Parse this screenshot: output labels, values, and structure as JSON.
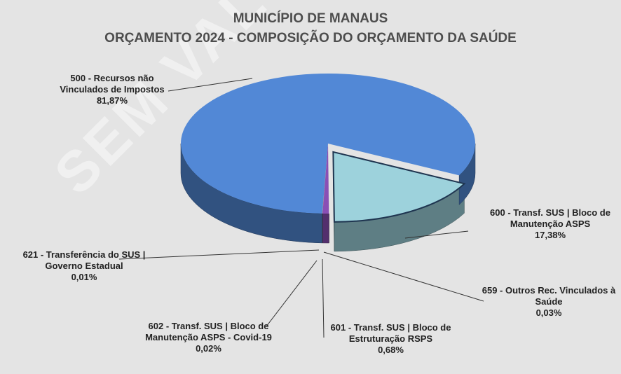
{
  "chart_data": {
    "type": "pie3d",
    "title": "MUNICÍPIO DE MANAUS",
    "subtitle": "ORÇAMENTO 2024  -  COMPOSIÇÃO DO ORÇAMENTO DA SAÚDE",
    "watermark": "SEM VALOR",
    "categories": [
      "600 - Transf. SUS | Bloco de Manutenção ASPS",
      "659 - Outros Rec. Vinculados à Saúde",
      "601 - Transf. SUS | Bloco de Estruturação RSPS",
      "602 - Transf. SUS | Bloco de Manutenção ASPS - Covid-19",
      "621 - Transferência do SUS | Governo Estadual",
      "500 - Recursos não Vinculados de Impostos"
    ],
    "values": [
      17.38,
      0.03,
      0.68,
      0.02,
      0.01,
      81.87
    ],
    "value_labels": [
      "17,38%",
      "0,03%",
      "0,68%",
      "0,02%",
      "0,01%",
      "81,87%"
    ],
    "colors": [
      "#9dd2dc",
      "#b0b0b0",
      "#8a4fb5",
      "#c0504d",
      "#6aa84f",
      "#5288d6"
    ]
  }
}
